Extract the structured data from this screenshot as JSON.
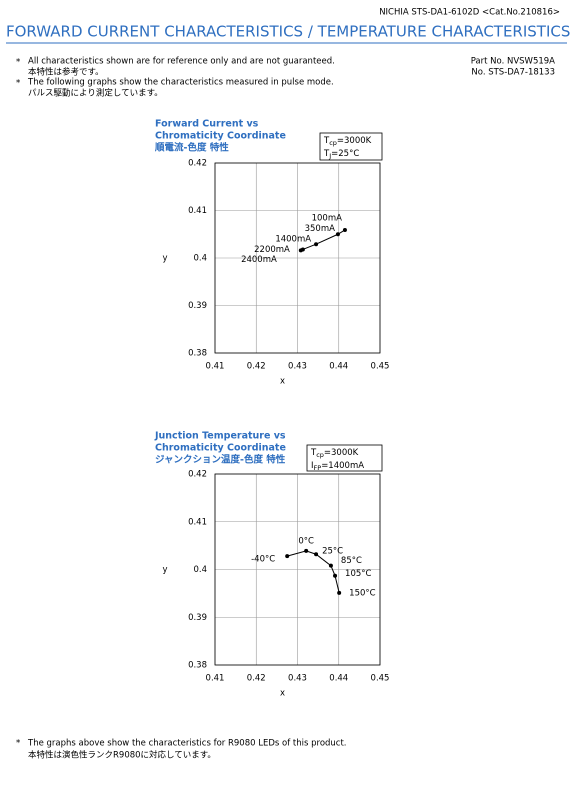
{
  "header": {
    "doc_id": "NICHIA STS-DA1-6102D <Cat.No.210816>",
    "title": "FORWARD CURRENT CHARACTERISTICS / TEMPERATURE CHARACTERISTICS"
  },
  "notes": [
    {
      "mark": "*",
      "lines": [
        "All characteristics shown are for reference only and are not guaranteed.",
        "本特性は参考です。"
      ]
    },
    {
      "mark": "*",
      "lines": [
        "The following graphs show the characteristics measured in pulse mode.",
        "パルス駆動により測定しています。"
      ]
    }
  ],
  "part": [
    "Part No. NVSW519A",
    "No. STS-DA7-18133"
  ],
  "chart_data": [
    {
      "type": "line",
      "title": [
        "Forward Current vs",
        "Chromaticity Coordinate"
      ],
      "subtitle": "順電流-色度 特性",
      "conditions": [
        {
          "main": "T",
          "sub": "cp",
          "value": "=3000K"
        },
        {
          "main": "T",
          "sub": "J",
          "value": "=25°C"
        }
      ],
      "x_label": "x",
      "y_label": "y",
      "series": [
        {
          "color": "#000000",
          "x": [
            0.4415,
            0.4398,
            0.4345,
            0.4313,
            0.4308
          ],
          "values": [
            0.4059,
            0.405,
            0.4029,
            0.4018,
            0.4016
          ],
          "labels": [
            "100mA",
            "350mA",
            "1400mA",
            "2200mA",
            "2400mA"
          ]
        }
      ],
      "xlim": [
        0.41,
        0.45
      ],
      "xticks": [
        0.41,
        0.42,
        0.43,
        0.44,
        0.45
      ],
      "ylim": [
        0.38,
        0.42
      ],
      "yticks": [
        0.38,
        0.39,
        0.4,
        0.41,
        0.42
      ],
      "grid": true
    },
    {
      "type": "line",
      "title": [
        "Junction Temperature vs",
        "Chromaticity Coordinate"
      ],
      "subtitle": "ジャンクション温度-色度 特性",
      "conditions": [
        {
          "main": "T",
          "sub": "cp",
          "value": "=3000K"
        },
        {
          "main": "I",
          "sub": "FP",
          "value": "=1400mA"
        }
      ],
      "x_label": "x",
      "y_label": "y",
      "series": [
        {
          "color": "#000000",
          "x": [
            0.4275,
            0.4321,
            0.4345,
            0.4381,
            0.4391,
            0.4401
          ],
          "values": [
            0.4028,
            0.4039,
            0.4032,
            0.4008,
            0.3987,
            0.3951
          ],
          "labels": [
            "-40°C",
            "0°C",
            "25°C",
            "85°C",
            "105°C",
            "150°C"
          ]
        }
      ],
      "xlim": [
        0.41,
        0.45
      ],
      "xticks": [
        0.41,
        0.42,
        0.43,
        0.44,
        0.45
      ],
      "ylim": [
        0.38,
        0.42
      ],
      "yticks": [
        0.38,
        0.39,
        0.4,
        0.41,
        0.42
      ],
      "grid": true
    }
  ],
  "footer": {
    "mark": "*",
    "lines": [
      "The graphs above show the characteristics for R9080 LEDs of this product.",
      "本特性は演色性ランクR9080に対応しています。"
    ]
  }
}
